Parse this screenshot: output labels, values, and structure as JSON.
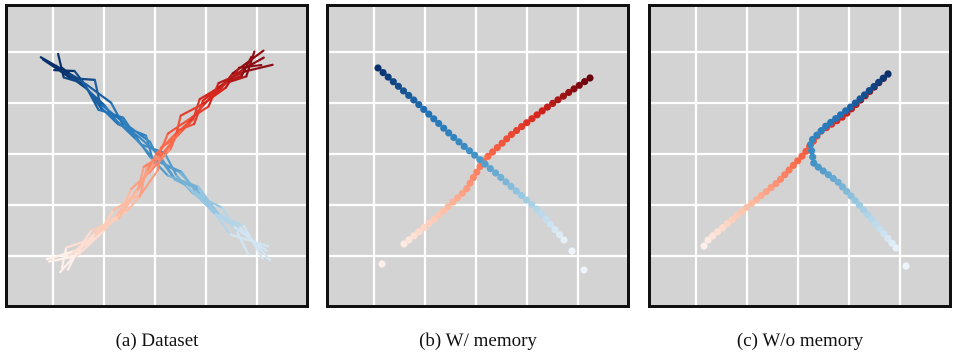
{
  "panels": [
    {
      "id": "a",
      "caption": "(a) Dataset",
      "style": "lines"
    },
    {
      "id": "b",
      "caption": "(b) W/ memory",
      "style": "dots"
    },
    {
      "id": "c",
      "caption": "(c) W/o memory",
      "style": "dots"
    }
  ],
  "colors": {
    "background": "#d3d3d3",
    "grid": "#ffffff",
    "frame": "#111111",
    "blue_start": "#08306b",
    "blue_end": "#eef4fb",
    "red_start": "#fff0ea",
    "red_end": "#67000d"
  }
}
